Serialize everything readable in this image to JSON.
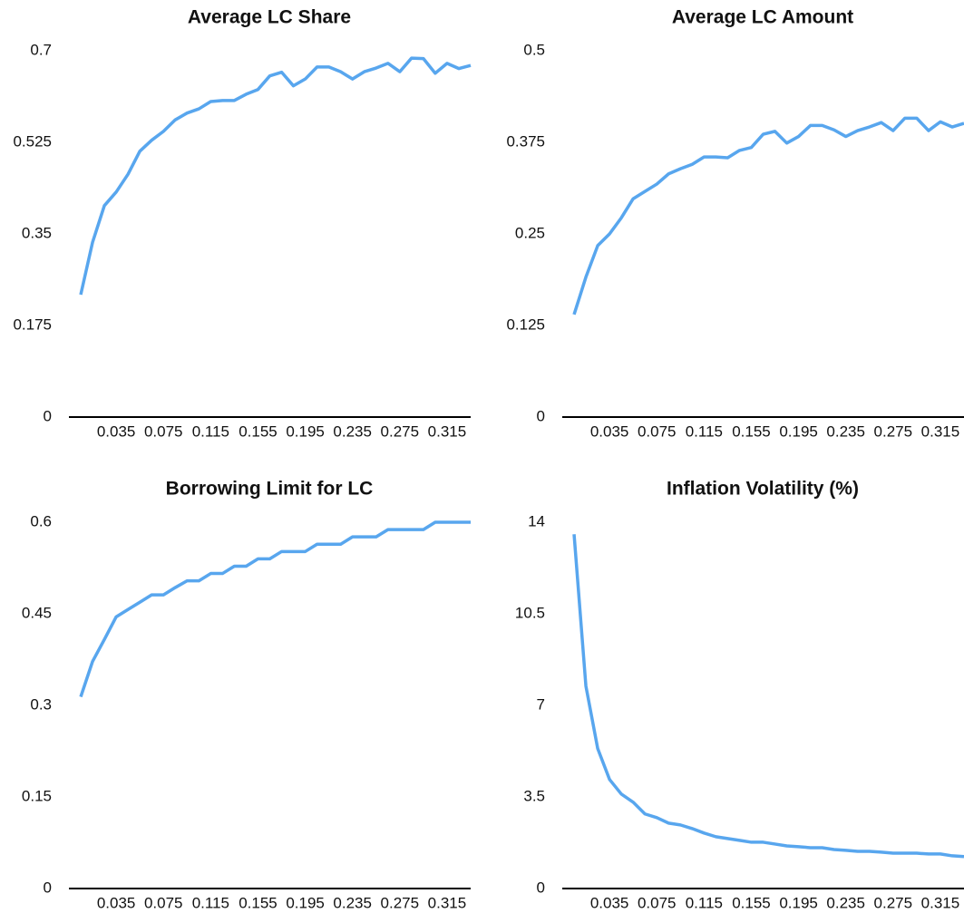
{
  "chart_data": [
    {
      "type": "line",
      "title": "Average LC Share",
      "color": "#58a6ee",
      "x": [
        0.005,
        0.015,
        0.025,
        0.035,
        0.045,
        0.055,
        0.065,
        0.075,
        0.085,
        0.095,
        0.105,
        0.115,
        0.125,
        0.135,
        0.145,
        0.155,
        0.165,
        0.175,
        0.185,
        0.195,
        0.205,
        0.215,
        0.225,
        0.235,
        0.245,
        0.255,
        0.265,
        0.275,
        0.285,
        0.295,
        0.305,
        0.315,
        0.325,
        0.335
      ],
      "values": [
        0.234,
        0.334,
        0.404,
        0.43,
        0.464,
        0.508,
        0.529,
        0.546,
        0.568,
        0.581,
        0.589,
        0.603,
        0.605,
        0.605,
        0.617,
        0.626,
        0.652,
        0.659,
        0.633,
        0.646,
        0.669,
        0.669,
        0.66,
        0.646,
        0.66,
        0.667,
        0.676,
        0.66,
        0.686,
        0.685,
        0.657,
        0.676,
        0.666,
        0.672
      ],
      "xlim": [
        -0.005,
        0.335
      ],
      "xticks": [
        0.035,
        0.075,
        0.115,
        0.155,
        0.195,
        0.235,
        0.275,
        0.315
      ],
      "ylim": [
        0,
        0.7
      ],
      "yticks": [
        0,
        0.175,
        0.35,
        0.525,
        0.7
      ]
    },
    {
      "type": "line",
      "title": "Average LC Amount",
      "color": "#58a6ee",
      "x": [
        0.005,
        0.015,
        0.025,
        0.035,
        0.045,
        0.055,
        0.065,
        0.075,
        0.085,
        0.095,
        0.105,
        0.115,
        0.125,
        0.135,
        0.145,
        0.155,
        0.165,
        0.175,
        0.185,
        0.195,
        0.205,
        0.215,
        0.225,
        0.235,
        0.245,
        0.255,
        0.265,
        0.275,
        0.285,
        0.295,
        0.305,
        0.315,
        0.325,
        0.335
      ],
      "values": [
        0.14,
        0.191,
        0.234,
        0.25,
        0.272,
        0.298,
        0.308,
        0.318,
        0.332,
        0.339,
        0.345,
        0.355,
        0.355,
        0.354,
        0.364,
        0.368,
        0.386,
        0.39,
        0.374,
        0.383,
        0.398,
        0.398,
        0.392,
        0.383,
        0.391,
        0.396,
        0.402,
        0.391,
        0.408,
        0.408,
        0.391,
        0.403,
        0.396,
        0.401
      ],
      "xlim": [
        -0.005,
        0.335
      ],
      "xticks": [
        0.035,
        0.075,
        0.115,
        0.155,
        0.195,
        0.235,
        0.275,
        0.315
      ],
      "ylim": [
        0,
        0.5
      ],
      "yticks": [
        0,
        0.125,
        0.25,
        0.375,
        0.5
      ]
    },
    {
      "type": "line",
      "title": "Borrowing Limit for LC",
      "color": "#58a6ee",
      "x": [
        0.005,
        0.015,
        0.025,
        0.035,
        0.045,
        0.055,
        0.065,
        0.075,
        0.085,
        0.095,
        0.105,
        0.115,
        0.125,
        0.135,
        0.145,
        0.155,
        0.165,
        0.175,
        0.185,
        0.195,
        0.205,
        0.215,
        0.225,
        0.235,
        0.245,
        0.255,
        0.265,
        0.275,
        0.285,
        0.295,
        0.305,
        0.315,
        0.325,
        0.335
      ],
      "values": [
        0.314,
        0.372,
        0.408,
        0.445,
        0.457,
        0.469,
        0.481,
        0.481,
        0.493,
        0.504,
        0.504,
        0.516,
        0.516,
        0.528,
        0.528,
        0.54,
        0.54,
        0.552,
        0.552,
        0.552,
        0.564,
        0.564,
        0.564,
        0.576,
        0.576,
        0.576,
        0.588,
        0.588,
        0.588,
        0.588,
        0.6,
        0.6,
        0.6,
        0.6
      ],
      "xlim": [
        -0.005,
        0.335
      ],
      "xticks": [
        0.035,
        0.075,
        0.115,
        0.155,
        0.195,
        0.235,
        0.275,
        0.315
      ],
      "ylim": [
        0,
        0.6
      ],
      "yticks": [
        0,
        0.15,
        0.3,
        0.45,
        0.6
      ]
    },
    {
      "type": "line",
      "title": "Inflation Volatility (%)",
      "color": "#58a6ee",
      "x": [
        0.005,
        0.015,
        0.025,
        0.035,
        0.045,
        0.055,
        0.065,
        0.075,
        0.085,
        0.095,
        0.105,
        0.115,
        0.125,
        0.135,
        0.145,
        0.155,
        0.165,
        0.175,
        0.185,
        0.195,
        0.205,
        0.215,
        0.225,
        0.235,
        0.245,
        0.255,
        0.265,
        0.275,
        0.285,
        0.295,
        0.305,
        0.315,
        0.325,
        0.335
      ],
      "values": [
        13.54,
        7.74,
        5.35,
        4.17,
        3.61,
        3.3,
        2.85,
        2.71,
        2.5,
        2.43,
        2.29,
        2.12,
        1.98,
        1.91,
        1.84,
        1.77,
        1.77,
        1.7,
        1.63,
        1.6,
        1.56,
        1.56,
        1.49,
        1.46,
        1.42,
        1.42,
        1.39,
        1.35,
        1.35,
        1.35,
        1.32,
        1.32,
        1.25,
        1.22
      ],
      "xlim": [
        -0.005,
        0.335
      ],
      "xticks": [
        0.035,
        0.075,
        0.115,
        0.155,
        0.195,
        0.235,
        0.275,
        0.315
      ],
      "ylim": [
        0,
        14
      ],
      "yticks": [
        0,
        3.5,
        7,
        10.5,
        14
      ]
    }
  ]
}
